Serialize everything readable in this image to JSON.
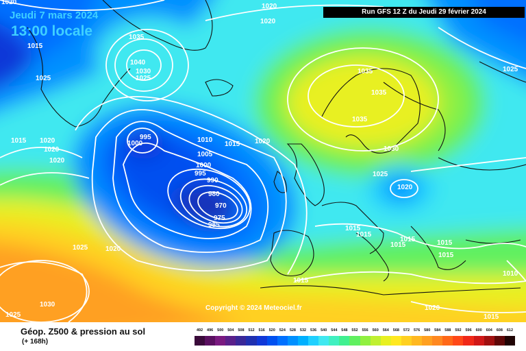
{
  "header": {
    "date": "Jeudi 7 mars 2024",
    "local_time": "13:00 locale",
    "run_info": "Run GFS 12 Z du Jeudi 29 février 2024"
  },
  "copyright": "Copyright © 2024 Meteociel.fr",
  "footer": {
    "title": "Géop. Z500 & pression au sol",
    "subtitle": "(+ 168h)"
  },
  "legend": {
    "values": [
      "492",
      "496",
      "500",
      "504",
      "508",
      "512",
      "516",
      "520",
      "524",
      "528",
      "532",
      "536",
      "540",
      "544",
      "548",
      "552",
      "556",
      "560",
      "564",
      "568",
      "572",
      "576",
      "580",
      "584",
      "588",
      "592",
      "596",
      "600",
      "604",
      "608",
      "612"
    ],
    "colors": [
      "#3a0a3a",
      "#5a1060",
      "#7a1a80",
      "#5a208a",
      "#3a2898",
      "#2030b0",
      "#1038d8",
      "#0050f0",
      "#0070ff",
      "#0090ff",
      "#00b0ff",
      "#20d0ff",
      "#40e8f0",
      "#40f0c0",
      "#40f090",
      "#60f060",
      "#90f040",
      "#c0f030",
      "#e8f020",
      "#ffe820",
      "#ffd020",
      "#ffb820",
      "#ffa020",
      "#ff8820",
      "#ff6818",
      "#ff4818",
      "#f02818",
      "#d01818",
      "#a01010",
      "#600808",
      "#200404"
    ]
  },
  "isobar_labels": [
    "1020",
    "1015",
    "1020",
    "1035",
    "1040",
    "1030",
    "1025",
    "1020",
    "1025",
    "1035",
    "1035",
    "1035",
    "1025",
    "1015",
    "1020",
    "1020",
    "1020",
    "995",
    "1000",
    "1010",
    "1015",
    "1020",
    "1005",
    "1000",
    "995",
    "990",
    "980",
    "970",
    "975",
    "985",
    "1030",
    "1025",
    "1020",
    "1015",
    "1015",
    "1015",
    "1015",
    "1015",
    "1015",
    "1025",
    "1020",
    "1030",
    "1015",
    "1025",
    "1010",
    "1020",
    "1015"
  ],
  "map_colors": {
    "deep_low": "#1830b8",
    "low": "#0050f0",
    "mid_blue": "#0090ff",
    "cyan": "#20d0ff",
    "aqua": "#40e8f0",
    "green": "#60f060",
    "lime": "#90f040",
    "yellow": "#e8f020",
    "gold": "#ffd020",
    "orange": "#ffa020"
  }
}
